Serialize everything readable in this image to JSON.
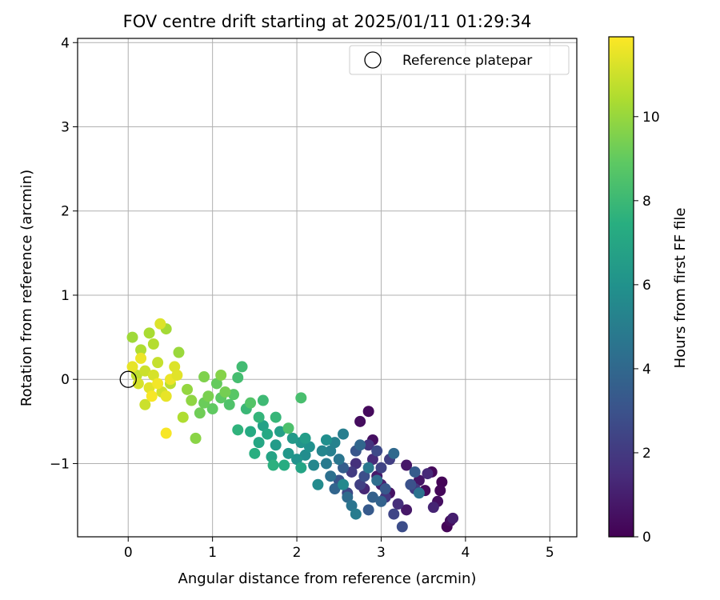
{
  "chart_data": {
    "type": "scatter",
    "title": "FOV centre drift starting at 2025/01/11 01:29:34",
    "xlabel": "Angular distance from reference (arcmin)",
    "ylabel": "Rotation from reference (arcmin)",
    "xlim": [
      -0.6,
      5.32
    ],
    "ylim": [
      -1.87,
      4.05
    ],
    "xticks": [
      0,
      1,
      2,
      3,
      4,
      5
    ],
    "yticks": [
      -1,
      0,
      1,
      2,
      3,
      4
    ],
    "xtick_labels": [
      "0",
      "1",
      "2",
      "3",
      "4",
      "5"
    ],
    "ytick_labels": [
      "−1",
      "0",
      "1",
      "2",
      "3",
      "4"
    ],
    "grid": true,
    "legend": {
      "placement": "top-right",
      "entries": [
        "Reference platepar"
      ]
    },
    "reference_point": {
      "x": 0,
      "y": 0,
      "marker": "open-circle"
    },
    "colorbar": {
      "label": "Hours from first FF file",
      "min": 0,
      "max": 11.9,
      "ticks": [
        0,
        2,
        4,
        6,
        8,
        10
      ],
      "tick_labels": [
        "0",
        "2",
        "4",
        "6",
        "8",
        "10"
      ],
      "colormap": "viridis"
    },
    "points": [
      {
        "x": 3.72,
        "y": -1.22,
        "h": 0.1
      },
      {
        "x": 3.78,
        "y": -1.75,
        "h": 0.1
      },
      {
        "x": 3.7,
        "y": -1.32,
        "h": 0.2
      },
      {
        "x": 3.6,
        "y": -1.1,
        "h": 0.2
      },
      {
        "x": 3.52,
        "y": -1.32,
        "h": 0.3
      },
      {
        "x": 3.82,
        "y": -1.68,
        "h": 0.4
      },
      {
        "x": 3.67,
        "y": -1.45,
        "h": 0.5
      },
      {
        "x": 2.85,
        "y": -0.38,
        "h": 0.3
      },
      {
        "x": 2.75,
        "y": -0.5,
        "h": 0.4
      },
      {
        "x": 2.9,
        "y": -0.72,
        "h": 0.5
      },
      {
        "x": 3.1,
        "y": -1.35,
        "h": 0.6
      },
      {
        "x": 3.45,
        "y": -1.2,
        "h": 0.7
      },
      {
        "x": 3.3,
        "y": -1.02,
        "h": 0.8
      },
      {
        "x": 3.3,
        "y": -1.55,
        "h": 0.8
      },
      {
        "x": 2.95,
        "y": -1.15,
        "h": 0.9
      },
      {
        "x": 3.85,
        "y": -1.65,
        "h": 1.0
      },
      {
        "x": 3.0,
        "y": -1.25,
        "h": 1.1
      },
      {
        "x": 3.62,
        "y": -1.52,
        "h": 1.2
      },
      {
        "x": 2.8,
        "y": -1.3,
        "h": 1.3
      },
      {
        "x": 3.55,
        "y": -1.12,
        "h": 1.4
      },
      {
        "x": 2.9,
        "y": -0.95,
        "h": 1.5
      },
      {
        "x": 3.2,
        "y": -1.48,
        "h": 1.6
      },
      {
        "x": 2.7,
        "y": -1.0,
        "h": 1.7
      },
      {
        "x": 2.85,
        "y": -0.78,
        "h": 1.8
      },
      {
        "x": 3.05,
        "y": -1.4,
        "h": 1.9
      },
      {
        "x": 3.4,
        "y": -1.3,
        "h": 2.0
      },
      {
        "x": 2.65,
        "y": -1.1,
        "h": 2.1
      },
      {
        "x": 3.1,
        "y": -0.95,
        "h": 2.2
      },
      {
        "x": 2.75,
        "y": -1.25,
        "h": 2.3
      },
      {
        "x": 3.0,
        "y": -1.05,
        "h": 2.4
      },
      {
        "x": 3.15,
        "y": -1.6,
        "h": 2.5
      },
      {
        "x": 2.6,
        "y": -1.35,
        "h": 2.6
      },
      {
        "x": 2.95,
        "y": -0.85,
        "h": 2.7
      },
      {
        "x": 3.25,
        "y": -1.75,
        "h": 2.8
      },
      {
        "x": 2.8,
        "y": -1.15,
        "h": 2.9
      },
      {
        "x": 3.35,
        "y": -1.25,
        "h": 3.0
      },
      {
        "x": 2.5,
        "y": -1.2,
        "h": 3.1
      },
      {
        "x": 2.7,
        "y": -0.85,
        "h": 3.2
      },
      {
        "x": 3.05,
        "y": -1.3,
        "h": 3.3
      },
      {
        "x": 2.85,
        "y": -1.55,
        "h": 3.4
      },
      {
        "x": 3.4,
        "y": -1.1,
        "h": 3.5
      },
      {
        "x": 2.55,
        "y": -1.05,
        "h": 3.6
      },
      {
        "x": 2.9,
        "y": -1.4,
        "h": 3.7
      },
      {
        "x": 3.0,
        "y": -1.45,
        "h": 3.8
      },
      {
        "x": 2.45,
        "y": -1.3,
        "h": 3.9
      },
      {
        "x": 2.75,
        "y": -0.78,
        "h": 4.0
      },
      {
        "x": 3.15,
        "y": -0.88,
        "h": 4.1
      },
      {
        "x": 2.6,
        "y": -1.4,
        "h": 4.2
      },
      {
        "x": 2.95,
        "y": -1.2,
        "h": 4.3
      },
      {
        "x": 2.4,
        "y": -1.15,
        "h": 4.4
      },
      {
        "x": 3.45,
        "y": -1.35,
        "h": 4.5
      },
      {
        "x": 2.65,
        "y": -1.5,
        "h": 4.6
      },
      {
        "x": 2.5,
        "y": -0.95,
        "h": 4.7
      },
      {
        "x": 2.85,
        "y": -1.05,
        "h": 4.8
      },
      {
        "x": 2.35,
        "y": -1.0,
        "h": 4.9
      },
      {
        "x": 2.7,
        "y": -1.6,
        "h": 5.0
      },
      {
        "x": 2.55,
        "y": -0.65,
        "h": 5.1
      },
      {
        "x": 2.4,
        "y": -0.85,
        "h": 5.2
      },
      {
        "x": 2.45,
        "y": -0.75,
        "h": 5.3
      },
      {
        "x": 2.3,
        "y": -0.85,
        "h": 5.4
      },
      {
        "x": 2.2,
        "y": -1.02,
        "h": 5.5
      },
      {
        "x": 2.55,
        "y": -1.25,
        "h": 5.6
      },
      {
        "x": 2.25,
        "y": -1.25,
        "h": 5.7
      },
      {
        "x": 2.1,
        "y": -0.9,
        "h": 5.8
      },
      {
        "x": 2.35,
        "y": -0.72,
        "h": 5.9
      },
      {
        "x": 2.15,
        "y": -0.8,
        "h": 6.0
      },
      {
        "x": 2.0,
        "y": -0.95,
        "h": 6.1
      },
      {
        "x": 2.05,
        "y": -0.75,
        "h": 6.2
      },
      {
        "x": 1.9,
        "y": -0.88,
        "h": 6.3
      },
      {
        "x": 1.95,
        "y": -0.7,
        "h": 6.4
      },
      {
        "x": 1.75,
        "y": -0.78,
        "h": 6.5
      },
      {
        "x": 2.1,
        "y": -0.7,
        "h": 6.6
      },
      {
        "x": 1.8,
        "y": -0.62,
        "h": 6.7
      },
      {
        "x": 1.6,
        "y": -0.55,
        "h": 6.8
      },
      {
        "x": 1.7,
        "y": -0.92,
        "h": 6.9
      },
      {
        "x": 2.05,
        "y": -1.05,
        "h": 7.0
      },
      {
        "x": 1.55,
        "y": -0.75,
        "h": 7.1
      },
      {
        "x": 1.65,
        "y": -0.65,
        "h": 7.2
      },
      {
        "x": 1.45,
        "y": -0.62,
        "h": 7.3
      },
      {
        "x": 1.85,
        "y": -1.02,
        "h": 7.4
      },
      {
        "x": 1.5,
        "y": -0.88,
        "h": 7.5
      },
      {
        "x": 1.72,
        "y": -1.02,
        "h": 7.6
      },
      {
        "x": 1.3,
        "y": -0.6,
        "h": 7.7
      },
      {
        "x": 1.55,
        "y": -0.45,
        "h": 7.8
      },
      {
        "x": 1.75,
        "y": -0.45,
        "h": 7.9
      },
      {
        "x": 1.4,
        "y": -0.35,
        "h": 8.0
      },
      {
        "x": 1.6,
        "y": -0.25,
        "h": 8.1
      },
      {
        "x": 1.35,
        "y": 0.15,
        "h": 8.2
      },
      {
        "x": 1.3,
        "y": 0.02,
        "h": 8.3
      },
      {
        "x": 2.05,
        "y": -0.22,
        "h": 8.4
      },
      {
        "x": 1.9,
        "y": -0.58,
        "h": 8.5
      },
      {
        "x": 1.2,
        "y": -0.3,
        "h": 8.6
      },
      {
        "x": 1.45,
        "y": -0.28,
        "h": 8.7
      },
      {
        "x": 1.25,
        "y": -0.18,
        "h": 8.8
      },
      {
        "x": 1.1,
        "y": -0.22,
        "h": 8.9
      },
      {
        "x": 1.0,
        "y": -0.35,
        "h": 9.0
      },
      {
        "x": 1.05,
        "y": -0.05,
        "h": 9.1
      },
      {
        "x": 0.9,
        "y": -0.28,
        "h": 9.2
      },
      {
        "x": 0.85,
        "y": -0.4,
        "h": 9.3
      },
      {
        "x": 1.15,
        "y": -0.15,
        "h": 9.4
      },
      {
        "x": 0.95,
        "y": -0.2,
        "h": 9.5
      },
      {
        "x": 0.9,
        "y": 0.03,
        "h": 9.6
      },
      {
        "x": 1.1,
        "y": 0.05,
        "h": 9.7
      },
      {
        "x": 0.8,
        "y": -0.7,
        "h": 9.8
      },
      {
        "x": 0.75,
        "y": -0.25,
        "h": 9.9
      },
      {
        "x": 0.7,
        "y": -0.12,
        "h": 10.0
      },
      {
        "x": 0.6,
        "y": 0.32,
        "h": 10.1
      },
      {
        "x": 0.05,
        "y": 0.5,
        "h": 10.2
      },
      {
        "x": 0.45,
        "y": 0.6,
        "h": 10.3
      },
      {
        "x": 0.25,
        "y": 0.55,
        "h": 10.4
      },
      {
        "x": 0.15,
        "y": 0.35,
        "h": 10.5
      },
      {
        "x": 0.3,
        "y": 0.42,
        "h": 10.6
      },
      {
        "x": 0.5,
        "y": -0.05,
        "h": 10.7
      },
      {
        "x": 0.1,
        "y": 0.05,
        "h": 10.8
      },
      {
        "x": 0.35,
        "y": 0.2,
        "h": 10.9
      },
      {
        "x": 0.2,
        "y": 0.1,
        "h": 11.0
      },
      {
        "x": 0.4,
        "y": -0.15,
        "h": 11.1
      },
      {
        "x": 0.3,
        "y": 0.05,
        "h": 11.2
      },
      {
        "x": 0.55,
        "y": 0.15,
        "h": 11.3
      },
      {
        "x": 0.25,
        "y": -0.1,
        "h": 11.4
      },
      {
        "x": 0.45,
        "y": -0.2,
        "h": 11.5
      },
      {
        "x": 0.15,
        "y": 0.25,
        "h": 11.6
      },
      {
        "x": 0.35,
        "y": -0.05,
        "h": 11.7
      },
      {
        "x": 0.45,
        "y": -0.64,
        "h": 11.8
      },
      {
        "x": 0.38,
        "y": 0.66,
        "h": 11.3
      },
      {
        "x": 0.05,
        "y": 0.15,
        "h": 11.5
      },
      {
        "x": 0.2,
        "y": -0.3,
        "h": 11.0
      },
      {
        "x": 0.65,
        "y": -0.45,
        "h": 10.5
      },
      {
        "x": 0.5,
        "y": 0.0,
        "h": 11.6
      },
      {
        "x": 0.28,
        "y": -0.2,
        "h": 11.8
      },
      {
        "x": 0.12,
        "y": -0.05,
        "h": 11.2
      },
      {
        "x": 0.58,
        "y": 0.05,
        "h": 11.4
      }
    ]
  }
}
